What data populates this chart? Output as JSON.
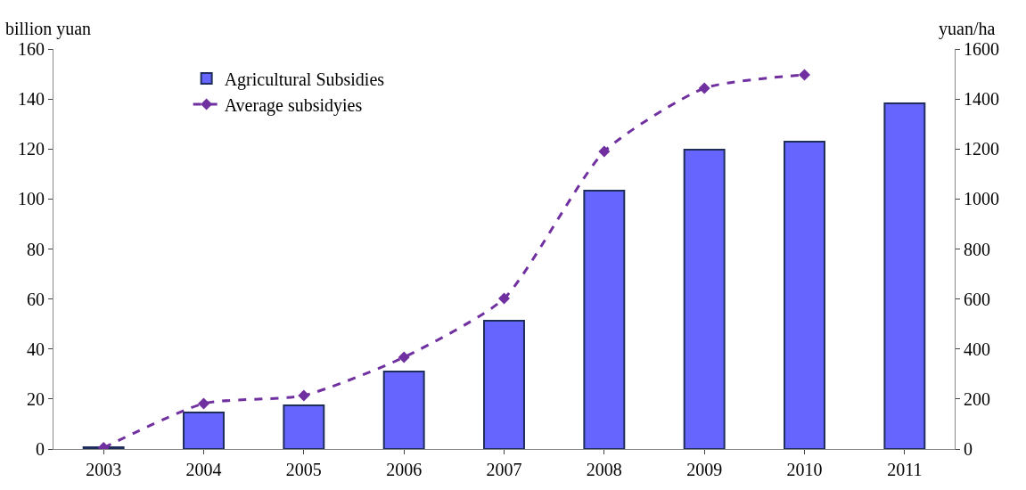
{
  "chart_data": {
    "type": "bar",
    "categories": [
      "2003",
      "2004",
      "2005",
      "2006",
      "2007",
      "2008",
      "2009",
      "2010",
      "2011"
    ],
    "ylabel": "billion yuan",
    "y2label": "yuan/ha",
    "ylim": [
      0,
      160
    ],
    "yticks": [
      0,
      20,
      40,
      60,
      80,
      100,
      120,
      140,
      160
    ],
    "y2lim": [
      0,
      1600
    ],
    "y2ticks": [
      0,
      200,
      400,
      600,
      800,
      1000,
      1200,
      1400,
      1600
    ],
    "series": [
      {
        "name": "Agricultural Subsidies",
        "color": "#6666ff",
        "values": [
          0.7,
          14.6,
          17.5,
          31,
          51.3,
          103.3,
          119.7,
          122.9,
          138.3
        ]
      },
      {
        "name": "Average subsidyies",
        "type": "line",
        "axis": "y2",
        "color": "#7030a0",
        "line_style": "dashed",
        "marker": "diamond",
        "values": [
          5,
          182,
          214,
          367,
          602,
          1190,
          1443,
          1497,
          null
        ]
      }
    ],
    "legend": "top left"
  }
}
